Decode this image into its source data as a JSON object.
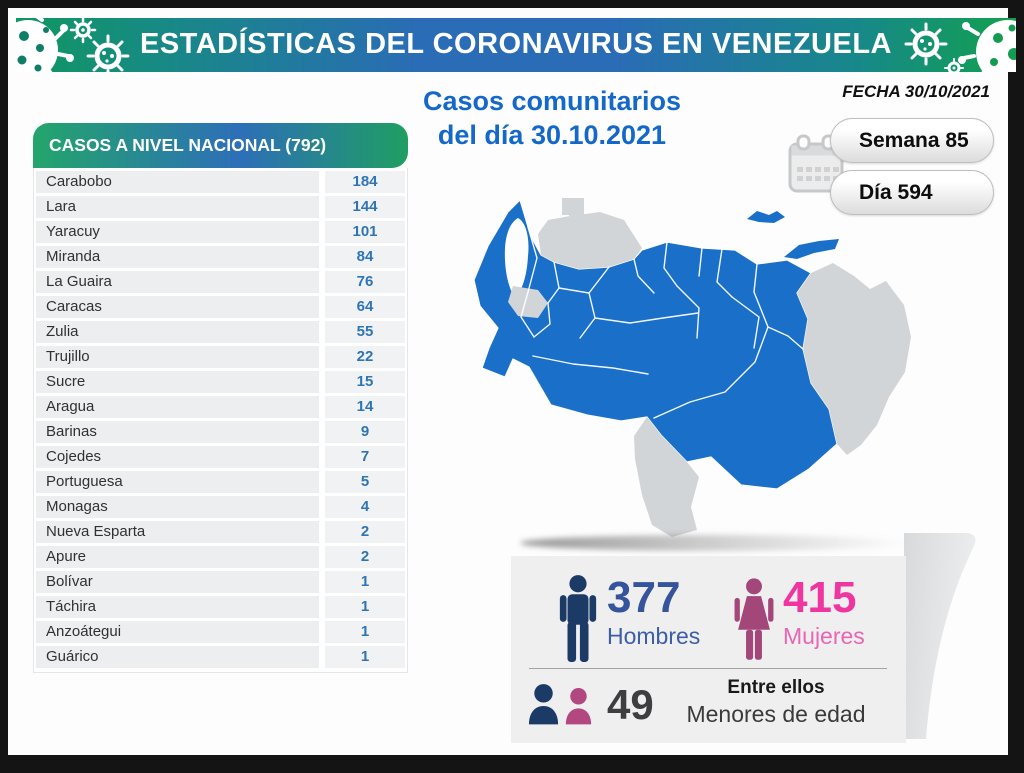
{
  "banner": {
    "title": "ESTADÍSTICAS DEL CORONAVIRUS EN VENEZUELA"
  },
  "date": {
    "label": "FECHA 30/10/2021",
    "week": "Semana 85",
    "day": "Día 594"
  },
  "title": {
    "line1": "Casos comunitarios",
    "line2": "del día 30.10.2021"
  },
  "table": {
    "header": "CASOS A NIVEL NACIONAL  (792)",
    "rows": [
      {
        "state": "Carabobo",
        "cases": "184"
      },
      {
        "state": "Lara",
        "cases": "144"
      },
      {
        "state": "Yaracuy",
        "cases": "101"
      },
      {
        "state": "Miranda",
        "cases": "84"
      },
      {
        "state": "La Guaira",
        "cases": "76"
      },
      {
        "state": "Caracas",
        "cases": "64"
      },
      {
        "state": "Zulia",
        "cases": "55"
      },
      {
        "state": "Trujillo",
        "cases": "22"
      },
      {
        "state": "Sucre",
        "cases": "15"
      },
      {
        "state": "Aragua",
        "cases": "14"
      },
      {
        "state": "Barinas",
        "cases": "9"
      },
      {
        "state": "Cojedes",
        "cases": "7"
      },
      {
        "state": "Portuguesa",
        "cases": "5"
      },
      {
        "state": "Monagas",
        "cases": "4"
      },
      {
        "state": "Nueva Esparta",
        "cases": "2"
      },
      {
        "state": "Apure",
        "cases": "2"
      },
      {
        "state": "Bolívar",
        "cases": "1"
      },
      {
        "state": "Táchira",
        "cases": "1"
      },
      {
        "state": "Anzoátegui",
        "cases": "1"
      },
      {
        "state": "Guárico",
        "cases": "1"
      }
    ]
  },
  "stats": {
    "men": {
      "value": "377",
      "label": "Hombres"
    },
    "women": {
      "value": "415",
      "label": "Mujeres"
    },
    "minors": {
      "value": "49",
      "line1": "Entre ellos",
      "line2": "Menores de edad"
    }
  },
  "colors": {
    "banner_green": "#0f9760",
    "banner_blue": "#2a6cb5",
    "title_blue": "#1468c8",
    "table_value_blue": "#2e75b6",
    "map_highlight": "#1a70c8",
    "map_inactive": "#d2d5d8",
    "men_icon": "#1b3a66",
    "men_text": "#35549c",
    "women_icon": "#a34679",
    "women_value": "#ee35a0",
    "minors_value": "#3e3e40"
  },
  "chart_data": {
    "type": "table",
    "title": "CASOS A NIVEL NACIONAL (792)",
    "subtitle": "Casos comunitarios del día 30.10.2021",
    "categories": [
      "Carabobo",
      "Lara",
      "Yaracuy",
      "Miranda",
      "La Guaira",
      "Caracas",
      "Zulia",
      "Trujillo",
      "Sucre",
      "Aragua",
      "Barinas",
      "Cojedes",
      "Portuguesa",
      "Monagas",
      "Nueva Esparta",
      "Apure",
      "Bolívar",
      "Táchira",
      "Anzoátegui",
      "Guárico"
    ],
    "values": [
      184,
      144,
      101,
      84,
      76,
      64,
      55,
      22,
      15,
      14,
      9,
      7,
      5,
      4,
      2,
      2,
      1,
      1,
      1,
      1
    ],
    "total": 792,
    "men": 377,
    "women": 415,
    "minors": 49,
    "week": 85,
    "day": 594,
    "date": "30/10/2021",
    "map_states_without_cases": [
      "Falcón",
      "Mérida",
      "Amazonas",
      "Delta Amacuro"
    ]
  }
}
